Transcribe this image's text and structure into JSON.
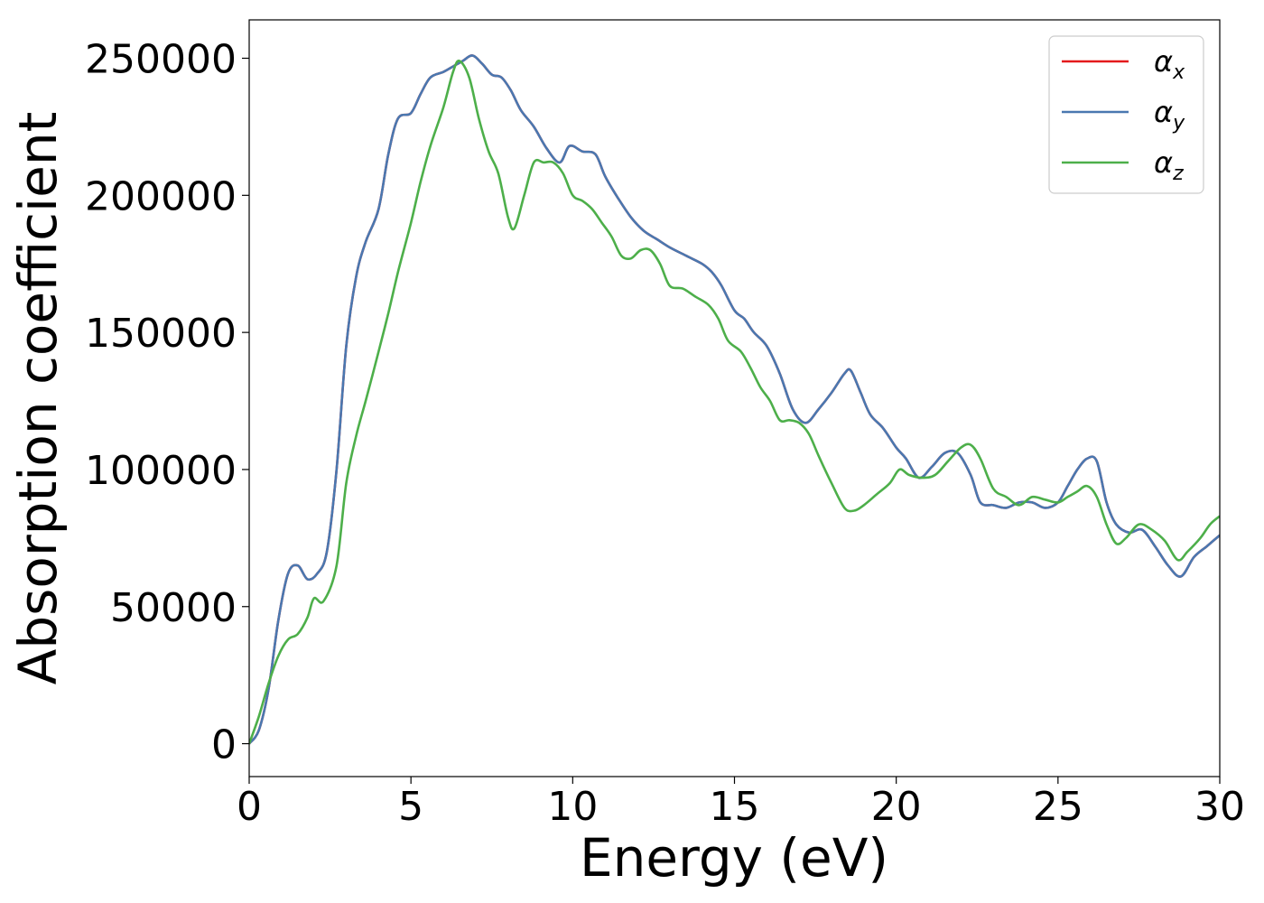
{
  "chart_data": {
    "type": "line",
    "xlabel": "Energy (eV)",
    "ylabel": "Absorption coefficient",
    "xlim": [
      0,
      30
    ],
    "ylim": [
      -12000,
      264000
    ],
    "xticks": [
      0,
      5,
      10,
      15,
      20,
      25,
      30
    ],
    "xtick_labels": [
      "0",
      "5",
      "10",
      "15",
      "20",
      "25",
      "30"
    ],
    "yticks": [
      0,
      50000,
      100000,
      150000,
      200000,
      250000
    ],
    "ytick_labels": [
      "0",
      "50000",
      "100000",
      "150000",
      "200000",
      "250000"
    ],
    "grid": false,
    "legend_position": "top-right",
    "legend": [
      {
        "symbol": "α",
        "subscript": "x",
        "color": "#e41a1c"
      },
      {
        "symbol": "α",
        "subscript": "y",
        "color": "#4a78b0"
      },
      {
        "symbol": "α",
        "subscript": "z",
        "color": "#4daf4a"
      }
    ],
    "series": [
      {
        "key": "alpha_x",
        "color": "#e41a1c",
        "x": [
          0,
          0.3,
          0.6,
          0.9,
          1.2,
          1.5,
          1.8,
          2.1,
          2.4,
          2.7,
          3.0,
          3.3,
          3.6,
          4.0,
          4.3,
          4.6,
          5.0,
          5.3,
          5.6,
          6.0,
          6.3,
          6.6,
          6.9,
          7.2,
          7.5,
          7.8,
          8.1,
          8.4,
          8.8,
          9.2,
          9.6,
          9.9,
          10.3,
          10.7,
          11.0,
          11.4,
          11.8,
          12.2,
          12.6,
          13.0,
          13.5,
          14.0,
          14.3,
          14.6,
          15.0,
          15.3,
          15.6,
          16.0,
          16.4,
          16.8,
          17.2,
          17.6,
          18.0,
          18.4,
          18.6,
          18.9,
          19.2,
          19.6,
          20.0,
          20.3,
          20.7,
          21.1,
          21.5,
          21.9,
          22.3,
          22.6,
          23.0,
          23.4,
          23.8,
          24.2,
          24.6,
          25.0,
          25.3,
          25.6,
          25.9,
          26.2,
          26.5,
          26.8,
          27.2,
          27.6,
          28.0,
          28.4,
          28.8,
          29.2,
          29.6,
          30.0
        ],
        "y": [
          0,
          5000,
          20000,
          45000,
          62000,
          65000,
          60000,
          62000,
          70000,
          100000,
          145000,
          170000,
          183000,
          195000,
          215000,
          228000,
          230000,
          237000,
          243000,
          245000,
          247000,
          249000,
          251000,
          248000,
          244000,
          243000,
          238000,
          231000,
          225000,
          217000,
          212000,
          218000,
          216000,
          215000,
          207000,
          199000,
          192000,
          187000,
          184000,
          181000,
          178000,
          175000,
          172000,
          167000,
          158000,
          155000,
          150000,
          145000,
          135000,
          122000,
          117000,
          122000,
          128000,
          135000,
          136000,
          128000,
          120000,
          115000,
          108000,
          104000,
          97000,
          101000,
          106000,
          106000,
          98000,
          88000,
          87000,
          86000,
          88000,
          88000,
          86000,
          88000,
          94000,
          100000,
          104000,
          103000,
          88000,
          80000,
          77000,
          78000,
          72000,
          65000,
          61000,
          68000,
          72000,
          76000
        ]
      },
      {
        "key": "alpha_y",
        "color": "#4a78b0",
        "x": [
          0,
          0.3,
          0.6,
          0.9,
          1.2,
          1.5,
          1.8,
          2.1,
          2.4,
          2.7,
          3.0,
          3.3,
          3.6,
          4.0,
          4.3,
          4.6,
          5.0,
          5.3,
          5.6,
          6.0,
          6.3,
          6.6,
          6.9,
          7.2,
          7.5,
          7.8,
          8.1,
          8.4,
          8.8,
          9.2,
          9.6,
          9.9,
          10.3,
          10.7,
          11.0,
          11.4,
          11.8,
          12.2,
          12.6,
          13.0,
          13.5,
          14.0,
          14.3,
          14.6,
          15.0,
          15.3,
          15.6,
          16.0,
          16.4,
          16.8,
          17.2,
          17.6,
          18.0,
          18.4,
          18.6,
          18.9,
          19.2,
          19.6,
          20.0,
          20.3,
          20.7,
          21.1,
          21.5,
          21.9,
          22.3,
          22.6,
          23.0,
          23.4,
          23.8,
          24.2,
          24.6,
          25.0,
          25.3,
          25.6,
          25.9,
          26.2,
          26.5,
          26.8,
          27.2,
          27.6,
          28.0,
          28.4,
          28.8,
          29.2,
          29.6,
          30.0
        ],
        "y": [
          0,
          5000,
          20000,
          45000,
          62000,
          65000,
          60000,
          62000,
          70000,
          100000,
          145000,
          170000,
          183000,
          195000,
          215000,
          228000,
          230000,
          237000,
          243000,
          245000,
          247000,
          249000,
          251000,
          248000,
          244000,
          243000,
          238000,
          231000,
          225000,
          217000,
          212000,
          218000,
          216000,
          215000,
          207000,
          199000,
          192000,
          187000,
          184000,
          181000,
          178000,
          175000,
          172000,
          167000,
          158000,
          155000,
          150000,
          145000,
          135000,
          122000,
          117000,
          122000,
          128000,
          135000,
          136000,
          128000,
          120000,
          115000,
          108000,
          104000,
          97000,
          101000,
          106000,
          106000,
          98000,
          88000,
          87000,
          86000,
          88000,
          88000,
          86000,
          88000,
          94000,
          100000,
          104000,
          103000,
          88000,
          80000,
          77000,
          78000,
          72000,
          65000,
          61000,
          68000,
          72000,
          76000
        ]
      },
      {
        "key": "alpha_z",
        "color": "#4daf4a",
        "x": [
          0,
          0.3,
          0.6,
          0.9,
          1.2,
          1.5,
          1.8,
          2.0,
          2.3,
          2.7,
          3.0,
          3.3,
          3.6,
          4.0,
          4.3,
          4.6,
          5.0,
          5.3,
          5.6,
          6.0,
          6.3,
          6.5,
          6.8,
          7.1,
          7.4,
          7.7,
          8.0,
          8.2,
          8.5,
          8.8,
          9.1,
          9.4,
          9.7,
          10.0,
          10.3,
          10.6,
          10.9,
          11.2,
          11.5,
          11.8,
          12.1,
          12.4,
          12.7,
          13.0,
          13.4,
          13.8,
          14.2,
          14.5,
          14.8,
          15.2,
          15.5,
          15.8,
          16.1,
          16.4,
          16.7,
          17.0,
          17.3,
          17.6,
          18.0,
          18.4,
          18.7,
          19.0,
          19.4,
          19.8,
          20.1,
          20.4,
          20.8,
          21.2,
          21.6,
          22.0,
          22.3,
          22.6,
          23.0,
          23.4,
          23.8,
          24.2,
          24.6,
          25.0,
          25.3,
          25.6,
          25.9,
          26.2,
          26.5,
          26.8,
          27.1,
          27.5,
          27.9,
          28.3,
          28.7,
          29.0,
          29.4,
          29.7,
          30.0
        ],
        "y": [
          0,
          10000,
          22000,
          32000,
          38000,
          40000,
          46000,
          53000,
          52000,
          65000,
          95000,
          112000,
          125000,
          143000,
          157000,
          172000,
          190000,
          205000,
          218000,
          232000,
          245000,
          249000,
          243000,
          228000,
          216000,
          208000,
          192000,
          188000,
          200000,
          212000,
          212000,
          212000,
          208000,
          200000,
          198000,
          195000,
          190000,
          185000,
          178000,
          177000,
          180000,
          180000,
          175000,
          167000,
          166000,
          163000,
          160000,
          155000,
          147000,
          143000,
          137000,
          130000,
          125000,
          118000,
          118000,
          117000,
          113000,
          105000,
          95000,
          86000,
          85000,
          87000,
          91000,
          95000,
          100000,
          98000,
          97000,
          98000,
          103000,
          108000,
          109000,
          104000,
          93000,
          90000,
          87000,
          90000,
          89000,
          88000,
          90000,
          92000,
          94000,
          90000,
          80000,
          73000,
          75000,
          80000,
          78000,
          74000,
          67000,
          70000,
          75000,
          80000,
          83000
        ]
      }
    ]
  }
}
